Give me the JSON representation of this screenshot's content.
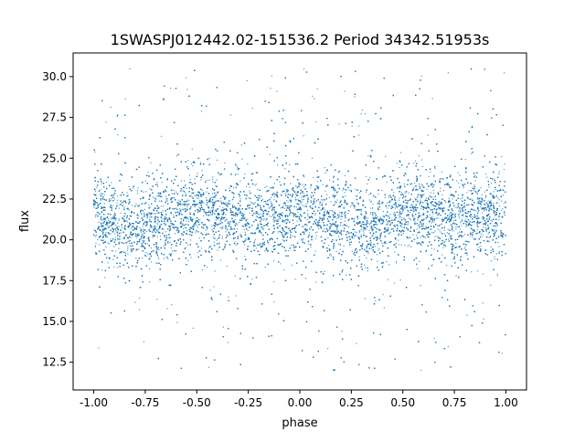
{
  "chart_data": {
    "type": "scatter",
    "title": "1SWASPJ012442.02-151536.2 Period 34342.51953s",
    "xlabel": "phase",
    "ylabel": "flux",
    "xlim": [
      -1.1,
      1.1
    ],
    "ylim": [
      10.8,
      31.45
    ],
    "xticks": [
      "-1.00",
      "-0.75",
      "-0.50",
      "-0.25",
      "0.00",
      "0.25",
      "0.50",
      "0.75",
      "1.00"
    ],
    "yticks": [
      "12.5",
      "15.0",
      "17.5",
      "20.0",
      "22.5",
      "25.0",
      "27.5",
      "30.0"
    ],
    "grid": false,
    "legend": "none",
    "color": "#1f77b4",
    "x_range_of_points": [
      -1.0,
      1.0
    ],
    "y_range_of_points": [
      11.8,
      30.5
    ],
    "binned_trend": {
      "phase": [
        -1.0,
        -0.875,
        -0.75,
        -0.625,
        -0.5,
        -0.375,
        -0.25,
        -0.125,
        0.0,
        0.125,
        0.25,
        0.375,
        0.5,
        0.625,
        0.75,
        0.875,
        1.0
      ],
      "mean_flux": [
        21.3,
        21.0,
        20.9,
        21.2,
        21.7,
        21.6,
        21.2,
        21.5,
        21.7,
        21.3,
        20.9,
        21.0,
        21.7,
        21.6,
        21.2,
        21.4,
        21.3
      ],
      "flux_std": 1.2
    }
  }
}
